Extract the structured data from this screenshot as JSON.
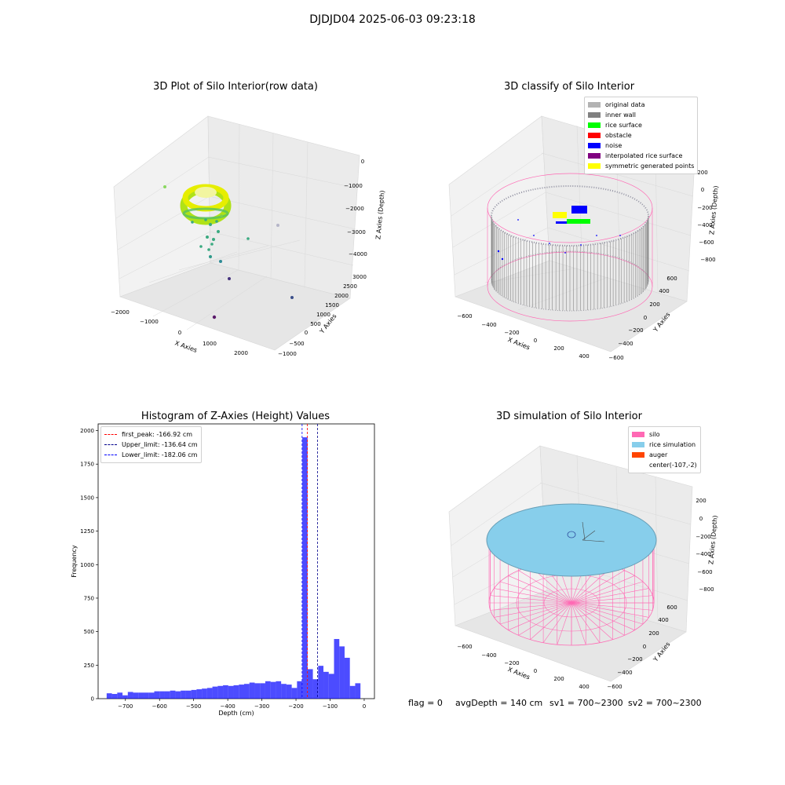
{
  "suptitle": "DJDJD04 2025-06-03 09:23:18",
  "panels": {
    "raw": {
      "title": "3D Plot of Silo Interior(row data)",
      "x_label": "X Axies",
      "y_label": "Y Axies",
      "z_label": "Z Axies (Depth)",
      "x_ticks": [
        "−2000",
        "−1000",
        "0",
        "1000",
        "2000"
      ],
      "y_ticks": [
        "−1000",
        "−500",
        "0",
        "500",
        "1000",
        "1500",
        "2000",
        "2500",
        "3000"
      ],
      "z_ticks": [
        "0",
        "−1000",
        "−2000",
        "−3000",
        "−4000"
      ]
    },
    "classify": {
      "title": "3D classify of Silo Interior",
      "x_label": "X Axies",
      "y_label": "Y Axies",
      "z_label": "Z Axies (Depth)",
      "x_ticks": [
        "−600",
        "−400",
        "−200",
        "0",
        "200",
        "400"
      ],
      "y_ticks": [
        "−600",
        "−400",
        "−200",
        "0",
        "200",
        "400",
        "600"
      ],
      "z_ticks": [
        "200",
        "0",
        "−200",
        "−400",
        "−600",
        "−800"
      ],
      "legend": [
        {
          "label": "original data",
          "color": "#b3b3b3"
        },
        {
          "label": "inner wall",
          "color": "#808080"
        },
        {
          "label": "rice surface",
          "color": "#00ff00"
        },
        {
          "label": "obstacle",
          "color": "#ff0000"
        },
        {
          "label": "noise",
          "color": "#0000ff"
        },
        {
          "label": "interpolated rice surface",
          "color": "#800080"
        },
        {
          "label": "symmetric generated points",
          "color": "#ffff00"
        }
      ]
    },
    "sim": {
      "title": "3D simulation of Silo Interior",
      "x_label": "X Axies",
      "y_label": "Y Axies",
      "z_label": "Z Axies (Depth)",
      "x_ticks": [
        "−600",
        "−400",
        "−200",
        "0",
        "200",
        "400"
      ],
      "y_ticks": [
        "−600",
        "−400",
        "−200",
        "0",
        "200",
        "400",
        "600"
      ],
      "z_ticks": [
        "200",
        "0",
        "−200",
        "−400",
        "−600",
        "−800"
      ],
      "legend": [
        {
          "label": "silo",
          "color": "#ff69b4"
        },
        {
          "label": "rice simulation",
          "color": "#87ceeb"
        },
        {
          "label": "auger",
          "color": "#ff4500"
        },
        {
          "label": "center(-107,-2)",
          "color": ""
        }
      ]
    }
  },
  "chart_data": {
    "type": "bar",
    "title": "Histogram of Z-Axies (Height) Values",
    "xlabel": "Depth (cm)",
    "ylabel": "Frequency",
    "xlim": [
      -780,
      30
    ],
    "ylim": [
      0,
      2050
    ],
    "x_ticks": [
      -700,
      -600,
      -500,
      -400,
      -300,
      -200,
      -100,
      0
    ],
    "y_ticks": [
      0,
      250,
      500,
      750,
      1000,
      1250,
      1500,
      1750,
      2000
    ],
    "bin_start": -755,
    "bin_width": 15.5,
    "values": [
      40,
      35,
      45,
      25,
      50,
      45,
      45,
      45,
      45,
      55,
      55,
      55,
      60,
      55,
      60,
      60,
      65,
      70,
      75,
      80,
      90,
      95,
      100,
      95,
      100,
      105,
      110,
      120,
      115,
      115,
      130,
      125,
      130,
      110,
      105,
      80,
      130,
      1950,
      220,
      145,
      245,
      200,
      185,
      445,
      390,
      305,
      95,
      115
    ],
    "lines": [
      {
        "label": "first_peak: -166.92 cm",
        "x": -166.92,
        "color": "#ff0000"
      },
      {
        "label": "Upper_limit: -136.64 cm",
        "x": -136.64,
        "color": "#00008b"
      },
      {
        "label": "Lower_limit: -182.06 cm",
        "x": -182.06,
        "color": "#0000ff"
      }
    ],
    "bar_color": "#0000ff",
    "legend_position": "top-left"
  },
  "footer": {
    "flag": "flag = 0",
    "avg": "avgDepth = 140 cm",
    "sv1": "sv1 = 700~2300",
    "sv2": "sv2 = 700~2300"
  }
}
